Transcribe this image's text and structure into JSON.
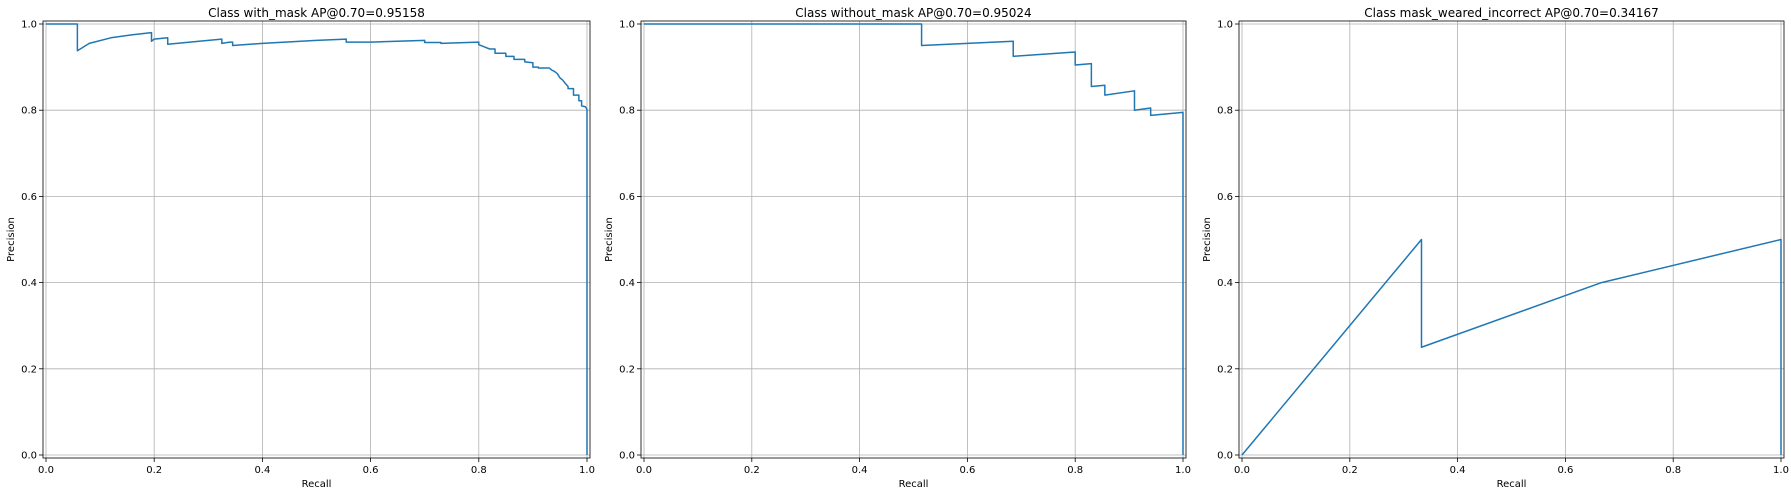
{
  "colors": {
    "line": "#1f77b4",
    "grid": "#b0b0b0",
    "axes": "#000000",
    "background": "#ffffff"
  },
  "chart_data": [
    {
      "type": "line",
      "title": "Class with_mask AP@0.70=0.95158",
      "xlabel": "Recall",
      "ylabel": "Precision",
      "xlim": [
        0,
        1
      ],
      "ylim": [
        0,
        1
      ],
      "xticks": [
        "0.0",
        "0.2",
        "0.4",
        "0.6",
        "0.8",
        "1.0"
      ],
      "yticks": [
        "0.0",
        "0.2",
        "0.4",
        "0.6",
        "0.8",
        "1.0"
      ],
      "grid": true,
      "series": [
        {
          "x": [
            0,
            0.058,
            0.058,
            0.08,
            0.12,
            0.16,
            0.195,
            0.195,
            0.2,
            0.225,
            0.225,
            0.3,
            0.325,
            0.325,
            0.34,
            0.345,
            0.345,
            0.4,
            0.5,
            0.555,
            0.555,
            0.6,
            0.7,
            0.7,
            0.73,
            0.73,
            0.8,
            0.8,
            0.81,
            0.82,
            0.83,
            0.83,
            0.85,
            0.85,
            0.865,
            0.865,
            0.885,
            0.885,
            0.9,
            0.9,
            0.91,
            0.91,
            0.93,
            0.935,
            0.94,
            0.945,
            0.95,
            0.955,
            0.96,
            0.965,
            0.965,
            0.975,
            0.975,
            0.985,
            0.985,
            0.99,
            0.99,
            0.997,
            1.0,
            1.0
          ],
          "y": [
            1.0,
            1.0,
            0.938,
            0.955,
            0.968,
            0.975,
            0.98,
            0.96,
            0.965,
            0.968,
            0.953,
            0.962,
            0.965,
            0.955,
            0.958,
            0.958,
            0.95,
            0.955,
            0.962,
            0.965,
            0.958,
            0.958,
            0.962,
            0.957,
            0.957,
            0.955,
            0.958,
            0.952,
            0.947,
            0.942,
            0.942,
            0.932,
            0.932,
            0.925,
            0.925,
            0.918,
            0.918,
            0.912,
            0.91,
            0.9,
            0.9,
            0.898,
            0.898,
            0.893,
            0.89,
            0.885,
            0.875,
            0.87,
            0.862,
            0.855,
            0.85,
            0.85,
            0.835,
            0.835,
            0.822,
            0.822,
            0.81,
            0.808,
            0.802,
            0.0
          ],
          "color": "#1f77b4"
        }
      ]
    },
    {
      "type": "line",
      "title": "Class without_mask AP@0.70=0.95024",
      "xlabel": "Recall",
      "ylabel": "Precision",
      "xlim": [
        0,
        1
      ],
      "ylim": [
        0,
        1
      ],
      "xticks": [
        "0.0",
        "0.2",
        "0.4",
        "0.6",
        "0.8",
        "1.0"
      ],
      "yticks": [
        "0.0",
        "0.2",
        "0.4",
        "0.6",
        "0.8",
        "1.0"
      ],
      "grid": true,
      "series": [
        {
          "x": [
            0,
            0.515,
            0.515,
            0.685,
            0.685,
            0.8,
            0.8,
            0.83,
            0.83,
            0.855,
            0.855,
            0.91,
            0.91,
            0.94,
            0.94,
            1.0,
            1.0
          ],
          "y": [
            1.0,
            1.0,
            0.95,
            0.96,
            0.925,
            0.935,
            0.905,
            0.908,
            0.855,
            0.858,
            0.835,
            0.845,
            0.8,
            0.805,
            0.788,
            0.795,
            0.0
          ],
          "color": "#1f77b4"
        }
      ]
    },
    {
      "type": "line",
      "title": "Class mask_weared_incorrect AP@0.70=0.34167",
      "xlabel": "Recall",
      "ylabel": "Precision",
      "xlim": [
        0,
        1
      ],
      "ylim": [
        0,
        1
      ],
      "xticks": [
        "0.0",
        "0.2",
        "0.4",
        "0.6",
        "0.8",
        "1.0"
      ],
      "yticks": [
        "0.0",
        "0.2",
        "0.4",
        "0.6",
        "0.8",
        "1.0"
      ],
      "grid": true,
      "series": [
        {
          "x": [
            0.0,
            0.333,
            0.333,
            0.667,
            1.0,
            1.0
          ],
          "y": [
            0.0,
            0.5,
            0.25,
            0.4,
            0.5,
            0.0
          ],
          "color": "#1f77b4"
        }
      ]
    }
  ]
}
